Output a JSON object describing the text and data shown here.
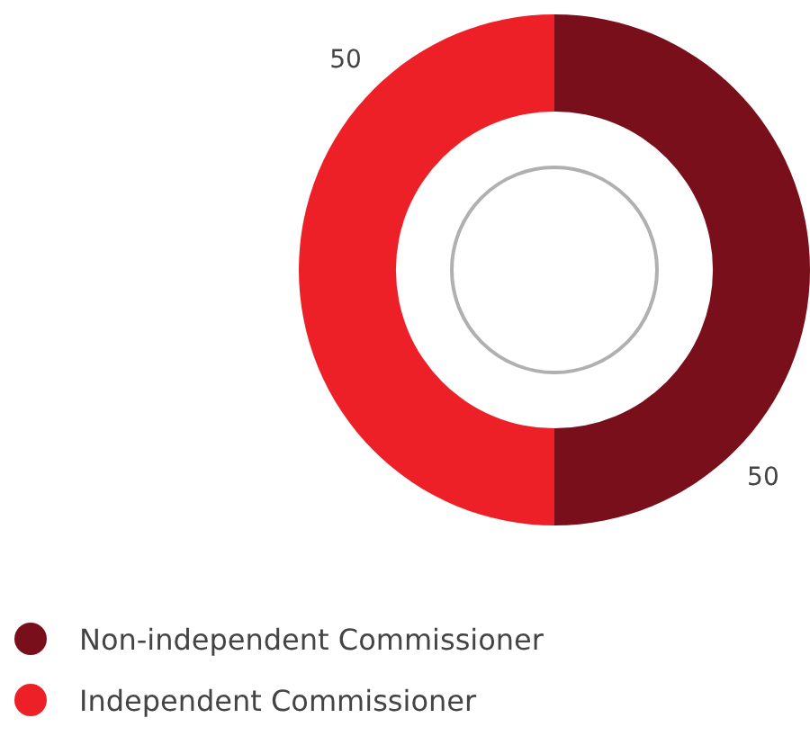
{
  "chart_data": {
    "type": "donut",
    "categories": [
      "Non-independent Commissioner",
      "Independent Commissioner"
    ],
    "values": [
      50,
      50
    ],
    "colors": [
      "#7a0f1c",
      "#ee2027"
    ],
    "data_labels": true,
    "legend": "bottom left"
  }
}
